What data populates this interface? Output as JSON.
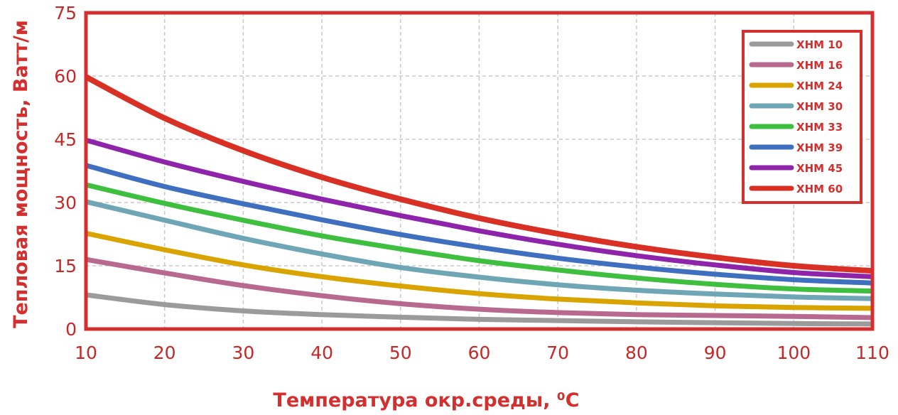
{
  "chart_data": {
    "type": "line",
    "xlabel": "Температура окр.среды, ⁰С",
    "ylabel": "Тепловая мощность, Ватт/м",
    "xlim": [
      10,
      110
    ],
    "ylim": [
      0,
      75
    ],
    "xticks": [
      "10",
      "20",
      "30",
      "40",
      "50",
      "60",
      "70",
      "80",
      "90",
      "100",
      "110"
    ],
    "yticks": [
      "0",
      "15",
      "30",
      "45",
      "60",
      "75"
    ],
    "grid": true,
    "legend_position": "top-right",
    "x": [
      10,
      20,
      30,
      40,
      50,
      60,
      70,
      80,
      90,
      100,
      110
    ],
    "series": [
      {
        "name": "ХНМ 10",
        "color": "#9b9b9b",
        "values": [
          8.1,
          5.8,
          4.3,
          3.4,
          2.8,
          2.3,
          2.0,
          1.7,
          1.5,
          1.3,
          1.2
        ]
      },
      {
        "name": "ХНМ 16",
        "color": "#b8698f",
        "values": [
          16.5,
          13.3,
          10.3,
          7.9,
          6.0,
          4.7,
          3.9,
          3.4,
          3.2,
          3.0,
          2.7
        ]
      },
      {
        "name": "ХНМ 24",
        "color": "#d9a300",
        "values": [
          22.7,
          18.8,
          15.2,
          12.4,
          10.2,
          8.4,
          7.1,
          6.2,
          5.5,
          5.1,
          4.9
        ]
      },
      {
        "name": "ХНМ 30",
        "color": "#6fa6b6",
        "values": [
          30.2,
          25.8,
          21.5,
          17.8,
          14.6,
          12.3,
          10.5,
          9.2,
          8.3,
          7.6,
          7.2
        ]
      },
      {
        "name": "ХНМ 33",
        "color": "#3fbf3f",
        "values": [
          34.2,
          29.8,
          25.8,
          22.1,
          19.0,
          16.2,
          14.0,
          12.1,
          10.6,
          9.5,
          9.0
        ]
      },
      {
        "name": "ХНМ 39",
        "color": "#3f6fbf",
        "values": [
          38.8,
          33.8,
          29.7,
          25.9,
          22.4,
          19.4,
          16.8,
          14.7,
          13.0,
          11.7,
          10.9
        ]
      },
      {
        "name": "ХНМ 45",
        "color": "#8e24aa",
        "values": [
          44.8,
          39.6,
          35.0,
          30.8,
          26.9,
          23.3,
          20.1,
          17.4,
          15.2,
          13.4,
          12.4
        ]
      },
      {
        "name": "ХНМ 60",
        "color": "#d93025",
        "values": [
          59.8,
          50.0,
          42.3,
          36.0,
          30.8,
          26.3,
          22.6,
          19.5,
          17.0,
          15.0,
          13.8
        ]
      }
    ]
  },
  "colors": {
    "frame": "#d32f2f",
    "grid": "#c8c8c8",
    "text": "#c62828"
  }
}
